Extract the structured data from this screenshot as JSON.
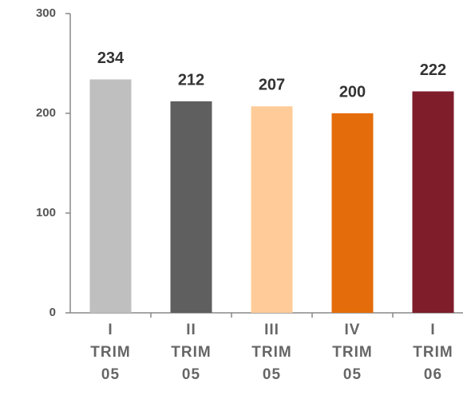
{
  "chart_data": {
    "type": "bar",
    "categories": [
      "I TRIM 05",
      "II TRIM 05",
      "III TRIM 05",
      "IV TRIM 05",
      "I TRIM 06"
    ],
    "values": [
      234,
      212,
      207,
      200,
      222
    ],
    "colors": [
      "#bfbfbf",
      "#5f5f5f",
      "#ffcc99",
      "#e46c0a",
      "#7f1d2b"
    ],
    "ylim": [
      0,
      300
    ],
    "yticks": [
      0,
      100,
      200,
      300
    ],
    "grid": false
  }
}
